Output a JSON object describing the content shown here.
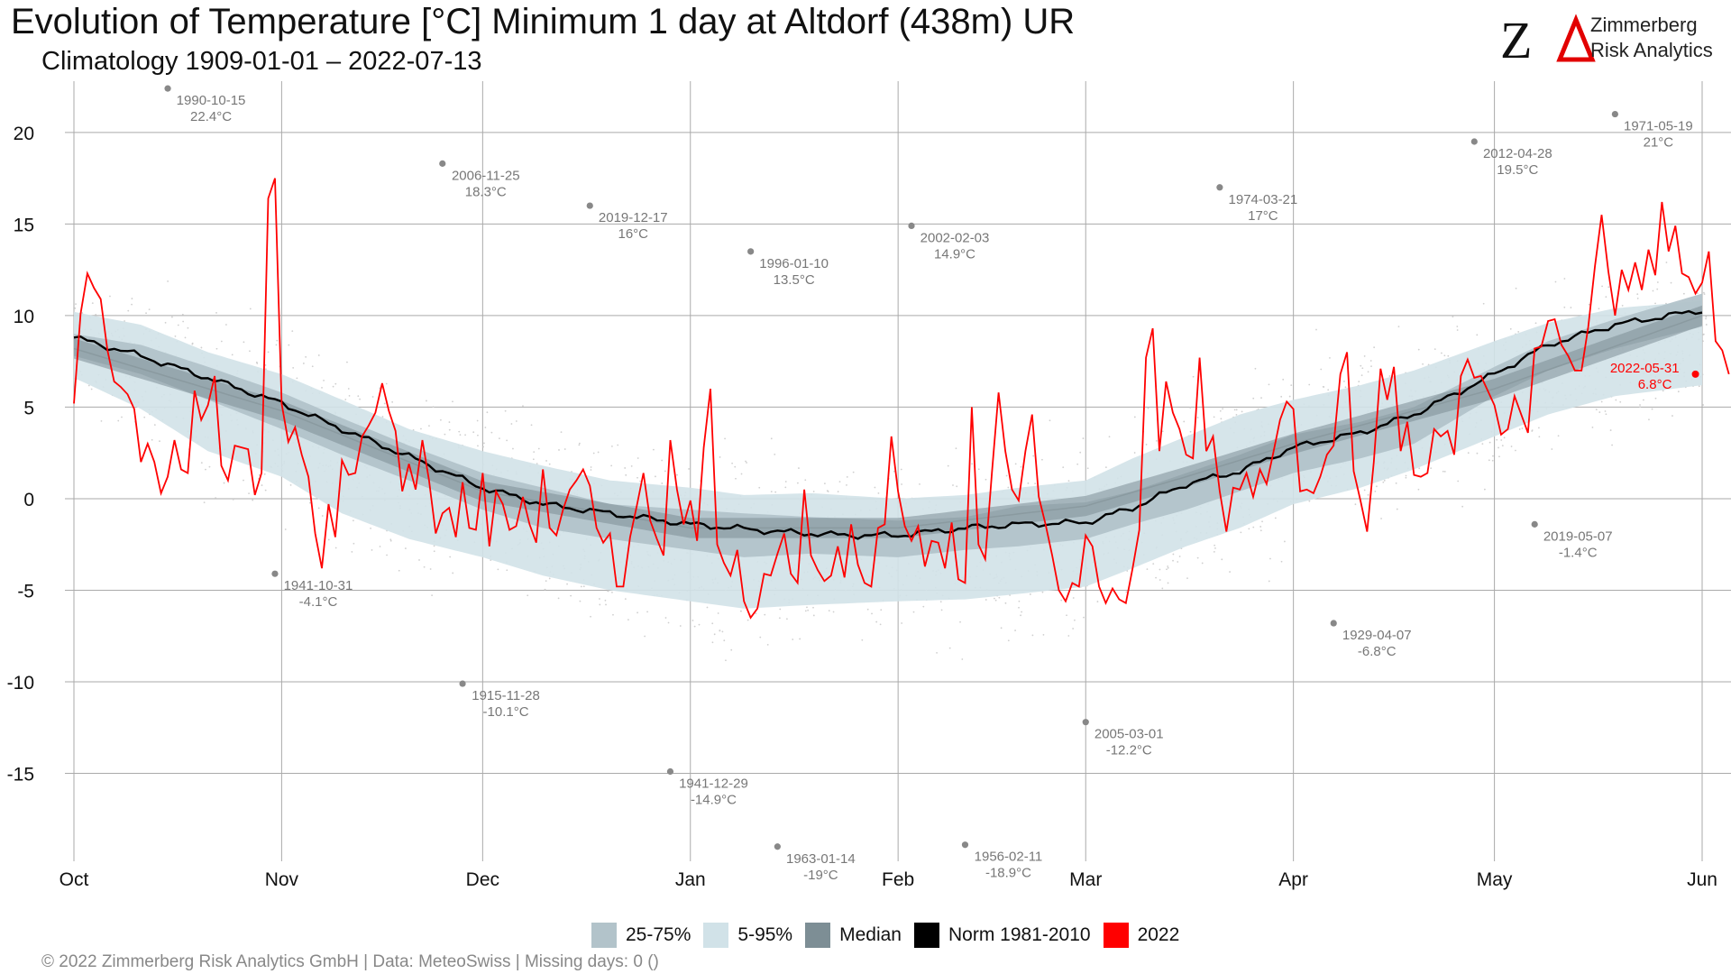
{
  "header": {
    "title": "Evolution of Temperature [°C] Minimum 1 day at Altdorf (438m) UR",
    "subtitle": "Climatology 1909-01-01 – 2022-07-13",
    "logo_mark": "ZΔ",
    "logo_name_line1": "Zimmerberg",
    "logo_name_line2": "Risk Analytics"
  },
  "footer": "©  2022 Zimmerberg Risk Analytics GmbH | Data: MeteoSwiss | Missing days: 0 ()",
  "colors": {
    "band_25_75": "#b2c3ca",
    "band_5_95": "#d1e2e8",
    "median": "#7d8e95",
    "norm": "#000000",
    "current": "#ff0000",
    "record": "#888888"
  },
  "legend": [
    {
      "label": "25-75%",
      "color": "#b2c3ca"
    },
    {
      "label": "5-95%",
      "color": "#d1e2e8"
    },
    {
      "label": "Median",
      "color": "#7d8e95"
    },
    {
      "label": "Norm 1981-2010",
      "color": "#000000"
    },
    {
      "label": "2022",
      "color": "#ff0000"
    }
  ],
  "chart_data": {
    "type": "line",
    "x_axis": {
      "ticks": [
        {
          "label": "Oct",
          "day": 0
        },
        {
          "label": "Nov",
          "day": 31
        },
        {
          "label": "Dec",
          "day": 61
        },
        {
          "label": "Jan",
          "day": 92
        },
        {
          "label": "Feb",
          "day": 123
        },
        {
          "label": "Mar",
          "day": 151
        },
        {
          "label": "Apr",
          "day": 182
        },
        {
          "label": "May",
          "day": 212
        },
        {
          "label": "Jun",
          "day": 243
        }
      ],
      "range_days": [
        0,
        243
      ]
    },
    "y_axis": {
      "ticks": [
        20,
        15,
        10,
        5,
        0,
        -5,
        -10,
        -15
      ],
      "range": [
        -19.8,
        22.8
      ]
    },
    "series": [
      {
        "name": "Norm 1981-2010",
        "anchors": [
          [
            0,
            8.8
          ],
          [
            10,
            7.8
          ],
          [
            20,
            6.6
          ],
          [
            31,
            5.2
          ],
          [
            40,
            3.8
          ],
          [
            50,
            2.3
          ],
          [
            61,
            0.6
          ],
          [
            70,
            -0.3
          ],
          [
            80,
            -0.8
          ],
          [
            92,
            -1.4
          ],
          [
            105,
            -1.8
          ],
          [
            115,
            -2.0
          ],
          [
            123,
            -2.0
          ],
          [
            133,
            -1.6
          ],
          [
            141,
            -1.4
          ],
          [
            151,
            -1.3
          ],
          [
            158,
            -0.5
          ],
          [
            166,
            0.8
          ],
          [
            174,
            1.5
          ],
          [
            182,
            2.8
          ],
          [
            192,
            3.6
          ],
          [
            200,
            4.6
          ],
          [
            212,
            6.8
          ],
          [
            220,
            8.4
          ],
          [
            230,
            9.5
          ],
          [
            243,
            10.3
          ]
        ]
      },
      {
        "name": "Median",
        "anchors": [
          [
            0,
            8.2
          ],
          [
            31,
            4.8
          ],
          [
            61,
            0.4
          ],
          [
            92,
            -1.6
          ],
          [
            123,
            -1.6
          ],
          [
            151,
            -0.4
          ],
          [
            166,
            1.2
          ],
          [
            182,
            3.0
          ],
          [
            212,
            6.0
          ],
          [
            243,
            10.0
          ]
        ]
      },
      {
        "name": "2022",
        "values": [
          5.2,
          10.1,
          12.3,
          11.5,
          10.9,
          8.1,
          6.4,
          6.1,
          5.7,
          4.9,
          2.0,
          3.0,
          2.0,
          0.3,
          1.2,
          3.2,
          1.6,
          1.4,
          5.9,
          4.3,
          5.1,
          6.7,
          1.8,
          1.0,
          2.9,
          2.8,
          2.7,
          0.2,
          1.4,
          16.4,
          17.5,
          5.2,
          3.1,
          3.9,
          2.4,
          1.2,
          -1.9,
          -3.8,
          -0.3,
          -2.1,
          2.1,
          1.3,
          1.4,
          3.4,
          4.0,
          4.7,
          6.3,
          4.8,
          3.7,
          0.4,
          1.9,
          0.5,
          3.2,
          1.0,
          -1.9,
          -0.8,
          -0.5,
          -2.1,
          0.9,
          -1.6,
          -1.7,
          1.4,
          -2.6,
          0.4,
          -0.3,
          -1.7,
          -1.5,
          0.1,
          -1.4,
          -2.4,
          1.6,
          -1.6,
          -2.0,
          -0.6,
          0.5,
          1.0,
          1.6,
          0.7,
          -1.6,
          -2.4,
          -1.9,
          -4.8,
          -4.8,
          -2.1,
          -0.4,
          1.4,
          -1.2,
          -2.2,
          -3.1,
          3.2,
          0.5,
          -1.4,
          -0.1,
          -2.3,
          2.8,
          6.0,
          -2.5,
          -3.5,
          -4.2,
          -2.8,
          -5.6,
          -6.5,
          -6.0,
          -4.1,
          -4.2,
          -3.0,
          -1.9,
          -4.1,
          -4.6,
          0.5,
          -3.1,
          -3.9,
          -4.5,
          -4.2,
          -2.6,
          -4.3,
          -1.4,
          -3.6,
          -4.6,
          -4.8,
          -1.6,
          -1.4,
          3.4,
          0.4,
          -1.5,
          -2.3,
          -1.5,
          -3.7,
          -2.3,
          -2.4,
          -3.8,
          -1.3,
          -4.4,
          -4.6,
          5.0,
          -2.5,
          -3.3,
          1.4,
          5.8,
          2.6,
          0.5,
          -0.1,
          2.6,
          4.6,
          0.1,
          -1.4,
          -3.1,
          -5.0,
          -5.6,
          -4.6,
          -4.8,
          -2.0,
          -2.6,
          -4.8,
          -5.7,
          -4.9,
          -5.5,
          -5.7,
          -3.8,
          -1.7,
          7.7,
          9.3,
          2.6,
          6.4,
          4.7,
          3.8,
          2.4,
          2.2,
          7.7,
          2.6,
          3.4,
          0.4,
          -1.8,
          0.6,
          0.5,
          1.4,
          0.1,
          1.6,
          0.8,
          2.5,
          4.3,
          5.3,
          4.9,
          0.4,
          0.5,
          0.3,
          1.2,
          2.4,
          2.9,
          6.8,
          8.0,
          1.5,
          -0.1,
          -1.8,
          2.0,
          7.1,
          5.4,
          7.2,
          2.6,
          4.2,
          1.3,
          1.2,
          1.4,
          3.8,
          3.4,
          3.7,
          2.4,
          6.7,
          7.6,
          6.6,
          6.7,
          5.9,
          5.1,
          3.5,
          3.8,
          5.6,
          4.6,
          3.6,
          8.2,
          8.3,
          9.7,
          9.8,
          8.4,
          7.8,
          7.0,
          7.0,
          9.4,
          12.7,
          15.5,
          12.4,
          10.0,
          12.5,
          11.4,
          12.9,
          11.4,
          13.6,
          12.2,
          16.2,
          13.5,
          14.9,
          12.3,
          12.1,
          11.2,
          11.8,
          13.5,
          8.6,
          8.1,
          6.8
        ]
      }
    ],
    "bands": [
      {
        "name": "5-95%",
        "anchors": [
          [
            0,
            10.2,
            6.6
          ],
          [
            10,
            9.5,
            4.9
          ],
          [
            20,
            8.0,
            2.6
          ],
          [
            31,
            6.8,
            1.2
          ],
          [
            40,
            5.4,
            -0.8
          ],
          [
            50,
            3.8,
            -2.2
          ],
          [
            61,
            2.6,
            -3.2
          ],
          [
            70,
            1.8,
            -4.2
          ],
          [
            80,
            1.0,
            -5.0
          ],
          [
            92,
            0.6,
            -5.6
          ],
          [
            100,
            0.2,
            -6.0
          ],
          [
            110,
            0.3,
            -5.8
          ],
          [
            123,
            0.0,
            -5.6
          ],
          [
            133,
            0.2,
            -5.5
          ],
          [
            141,
            0.6,
            -5.2
          ],
          [
            151,
            1.0,
            -4.8
          ],
          [
            158,
            2.2,
            -3.8
          ],
          [
            166,
            3.4,
            -2.6
          ],
          [
            174,
            4.6,
            -1.6
          ],
          [
            182,
            5.4,
            -0.3
          ],
          [
            192,
            6.2,
            0.6
          ],
          [
            200,
            7.0,
            1.6
          ],
          [
            212,
            8.6,
            3.4
          ],
          [
            220,
            9.6,
            4.6
          ],
          [
            230,
            10.4,
            5.6
          ],
          [
            243,
            10.8,
            6.2
          ]
        ]
      },
      {
        "name": "25-75%",
        "anchors": [
          [
            0,
            9.0,
            7.8
          ],
          [
            10,
            8.4,
            6.8
          ],
          [
            20,
            7.2,
            5.4
          ],
          [
            31,
            5.8,
            3.8
          ],
          [
            40,
            4.4,
            2.4
          ],
          [
            50,
            2.9,
            1.0
          ],
          [
            61,
            1.4,
            -0.6
          ],
          [
            70,
            0.6,
            -1.6
          ],
          [
            80,
            -0.3,
            -2.2
          ],
          [
            92,
            -0.6,
            -2.8
          ],
          [
            100,
            -0.8,
            -3.2
          ],
          [
            110,
            -1.0,
            -3.0
          ],
          [
            123,
            -1.2,
            -3.2
          ],
          [
            133,
            -1.0,
            -2.8
          ],
          [
            141,
            -0.4,
            -2.6
          ],
          [
            151,
            -0.2,
            -2.2
          ],
          [
            158,
            0.4,
            -1.4
          ],
          [
            166,
            1.4,
            -0.6
          ],
          [
            174,
            2.4,
            0.4
          ],
          [
            182,
            3.5,
            1.4
          ],
          [
            192,
            4.2,
            2.2
          ],
          [
            200,
            5.0,
            3.0
          ],
          [
            212,
            7.2,
            5.6
          ],
          [
            220,
            8.6,
            7.0
          ],
          [
            230,
            9.8,
            8.2
          ],
          [
            243,
            11.2,
            9.4
          ]
        ]
      }
    ],
    "records": [
      {
        "date": "1990-10-15",
        "value": "22.4°C",
        "day": 14,
        "temp": 22.4,
        "label_side": "right"
      },
      {
        "date": "1941-10-31",
        "value": "-4.1°C",
        "day": 30,
        "temp": -4.1,
        "label_side": "right"
      },
      {
        "date": "2006-11-25",
        "value": "18.3°C",
        "day": 55,
        "temp": 18.3,
        "label_side": "right"
      },
      {
        "date": "1915-11-28",
        "value": "-10.1°C",
        "day": 58,
        "temp": -10.1,
        "label_side": "right"
      },
      {
        "date": "2019-12-17",
        "value": "16°C",
        "day": 77,
        "temp": 16.0,
        "label_side": "right"
      },
      {
        "date": "1941-12-29",
        "value": "-14.9°C",
        "day": 89,
        "temp": -14.9,
        "label_side": "right"
      },
      {
        "date": "1996-01-10",
        "value": "13.5°C",
        "day": 101,
        "temp": 13.5,
        "label_side": "right"
      },
      {
        "date": "1963-01-14",
        "value": "-19°C",
        "day": 105,
        "temp": -19.0,
        "label_side": "right"
      },
      {
        "date": "2002-02-03",
        "value": "14.9°C",
        "day": 125,
        "temp": 14.9,
        "label_side": "right"
      },
      {
        "date": "1956-02-11",
        "value": "-18.9°C",
        "day": 133,
        "temp": -18.9,
        "label_side": "right"
      },
      {
        "date": "2005-03-01",
        "value": "-12.2°C",
        "day": 151,
        "temp": -12.2,
        "label_side": "right"
      },
      {
        "date": "1974-03-21",
        "value": "17°C",
        "day": 171,
        "temp": 17.0,
        "label_side": "right"
      },
      {
        "date": "1929-04-07",
        "value": "-6.8°C",
        "day": 188,
        "temp": -6.8,
        "label_side": "right"
      },
      {
        "date": "2012-04-28",
        "value": "19.5°C",
        "day": 209,
        "temp": 19.5,
        "label_side": "right"
      },
      {
        "date": "2019-05-07",
        "value": "-1.4°C",
        "day": 218,
        "temp": -1.4,
        "label_side": "right"
      },
      {
        "date": "1971-05-19",
        "value": "21°C",
        "day": 230,
        "temp": 21.0,
        "label_side": "right"
      }
    ],
    "current_label": {
      "date": "2022-05-31",
      "value": "6.8°C",
      "day": 242,
      "temp": 6.8
    }
  }
}
